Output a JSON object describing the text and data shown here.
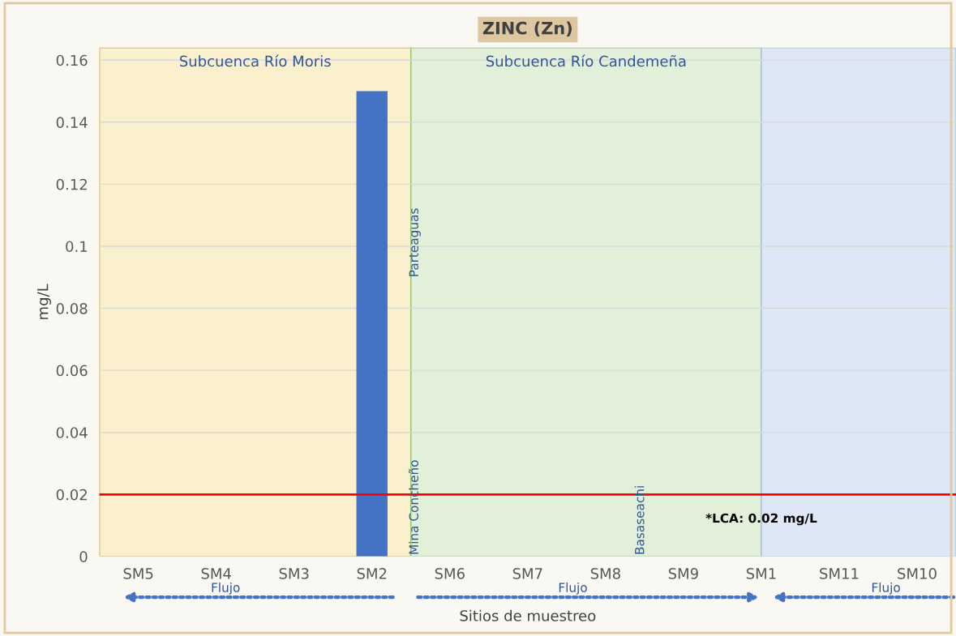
{
  "chart_data": {
    "type": "bar",
    "title": "ZINC (Zn)",
    "xlabel": "Sitios de muestreo",
    "ylabel": "mg/L",
    "categories": [
      "SM5",
      "SM4",
      "SM3",
      "SM2",
      "SM6",
      "SM7",
      "SM8",
      "SM9",
      "SM1",
      "SM11",
      "SM10"
    ],
    "values": [
      null,
      null,
      null,
      0.15,
      null,
      null,
      null,
      null,
      null,
      null,
      null
    ],
    "color": "#4472c4",
    "ylim": [
      0,
      0.164
    ],
    "yticks": [
      0,
      0.02,
      0.04,
      0.06,
      0.08,
      0.1,
      0.12,
      0.14,
      0.16
    ],
    "grid": "y",
    "ref_lines": [
      {
        "axis": "y",
        "value": 0.02,
        "label": "*LCA: 0.02 mg/L",
        "color": "#ff0000"
      }
    ],
    "bands": [
      {
        "axis": "x",
        "from": "SM5",
        "to": "SM2",
        "label": "Subcuenca Río Moris",
        "color": "#faf0cd"
      },
      {
        "axis": "x",
        "from": "SM6",
        "to": "SM1",
        "label": "Subcuenca Río Candemeña",
        "color": "#e2efd9"
      },
      {
        "axis": "x",
        "from": "SM1",
        "to": "SM10",
        "color": "#dee7f5"
      }
    ],
    "annotations": [
      "Parteaguas",
      "Mina Concheño",
      "Basaseachi",
      "Flujo",
      "Flujo",
      "Flujo"
    ]
  }
}
